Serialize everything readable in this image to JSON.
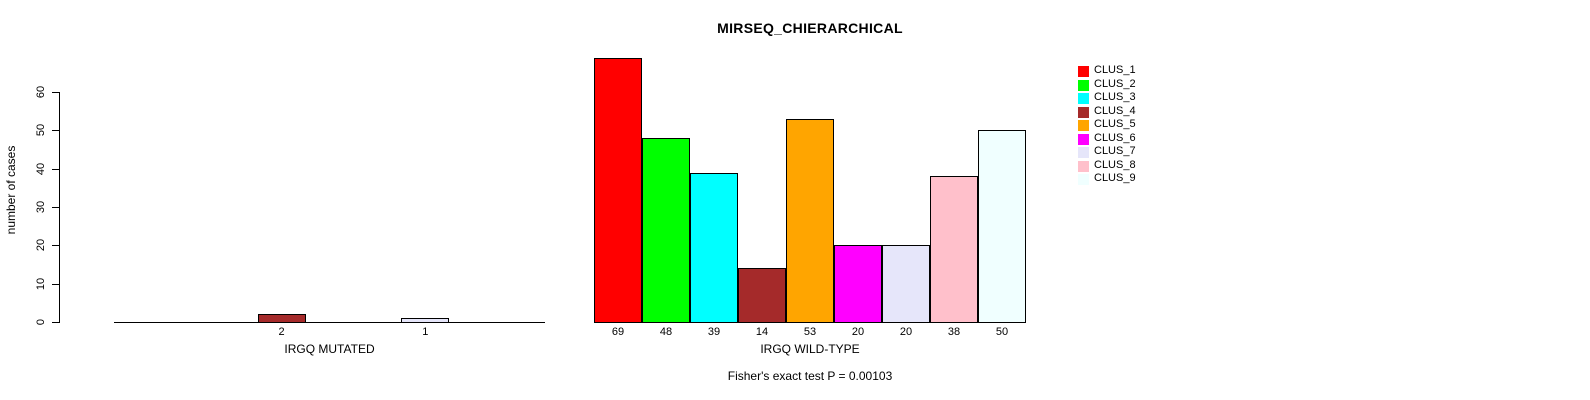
{
  "chart_data": {
    "type": "bar",
    "title": "MIRSEQ_CHIERARCHICAL",
    "ylabel": "number of cases",
    "ylim": [
      0,
      60
    ],
    "yticks": [
      0,
      10,
      20,
      30,
      40,
      50,
      60
    ],
    "grid": false,
    "legend_position": "right",
    "categories": [
      "CLUS_1",
      "CLUS_2",
      "CLUS_3",
      "CLUS_4",
      "CLUS_5",
      "CLUS_6",
      "CLUS_7",
      "CLUS_8",
      "CLUS_9"
    ],
    "colors": [
      "#FF0000",
      "#00FF00",
      "#00FFFF",
      "#A52A2A",
      "#FFA500",
      "#FF00FF",
      "#E6E6FA",
      "#FFC0CB",
      "#F0FFFF"
    ],
    "groups": [
      {
        "xlabel": "IRGQ MUTATED",
        "values": [
          0,
          0,
          0,
          2,
          0,
          0,
          1,
          0,
          0
        ],
        "bar_labels": [
          "",
          "",
          "",
          "2",
          "",
          "",
          "1",
          "",
          ""
        ]
      },
      {
        "xlabel": "IRGQ WILD-TYPE",
        "values": [
          69,
          48,
          39,
          14,
          53,
          20,
          20,
          38,
          50
        ],
        "bar_labels": [
          "69",
          "48",
          "39",
          "14",
          "53",
          "20",
          "20",
          "38",
          "50"
        ]
      }
    ],
    "annotation": "Fisher's exact test P = 0.00103"
  }
}
